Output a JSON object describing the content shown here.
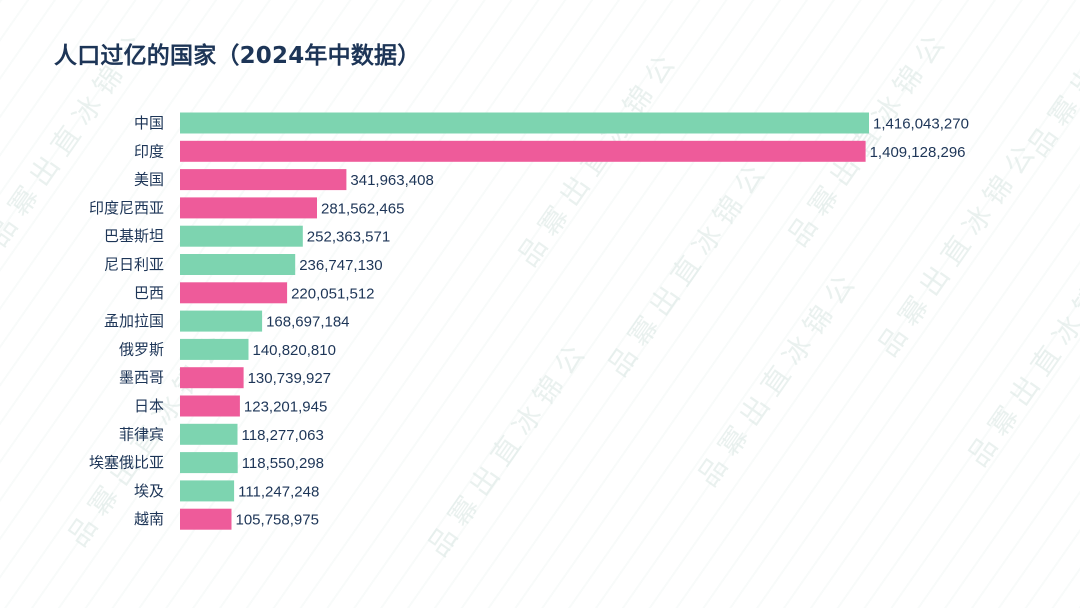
{
  "title": "人口过亿的国家（2024年中数据）",
  "colors": {
    "green": "#7dd4b0",
    "pink": "#ee5b9a",
    "text": "#1d3557"
  },
  "chart_data": {
    "type": "bar",
    "orientation": "horizontal",
    "title": "人口过亿的国家（2024年中数据）",
    "xlabel": "",
    "ylabel": "",
    "xlim": [
      0,
      1416043270
    ],
    "grid": false,
    "legend": "none",
    "categories": [
      "中国",
      "印度",
      "美国",
      "印度尼西亚",
      "巴基斯坦",
      "尼日利亚",
      "巴西",
      "孟加拉国",
      "俄罗斯",
      "墨西哥",
      "日本",
      "菲律宾",
      "埃塞俄比亚",
      "埃及",
      "越南"
    ],
    "values": [
      1416043270,
      1409128296,
      341963408,
      281562465,
      252363571,
      236747130,
      220051512,
      168697184,
      140820810,
      130739927,
      123201945,
      118277063,
      118550298,
      111247248,
      105758975
    ],
    "value_labels": [
      "1,416,043,270",
      "1,409,128,296",
      "341,963,408",
      "281,562,465",
      "252,363,571",
      "236,747,130",
      "220,051,512",
      "168,697,184",
      "140,820,810",
      "130,739,927",
      "123,201,945",
      "118,277,063",
      "118,550,298",
      "111,247,248",
      "105,758,975"
    ],
    "bar_colors": [
      "green",
      "pink",
      "pink",
      "pink",
      "green",
      "green",
      "pink",
      "green",
      "green",
      "pink",
      "pink",
      "green",
      "green",
      "green",
      "pink"
    ]
  }
}
